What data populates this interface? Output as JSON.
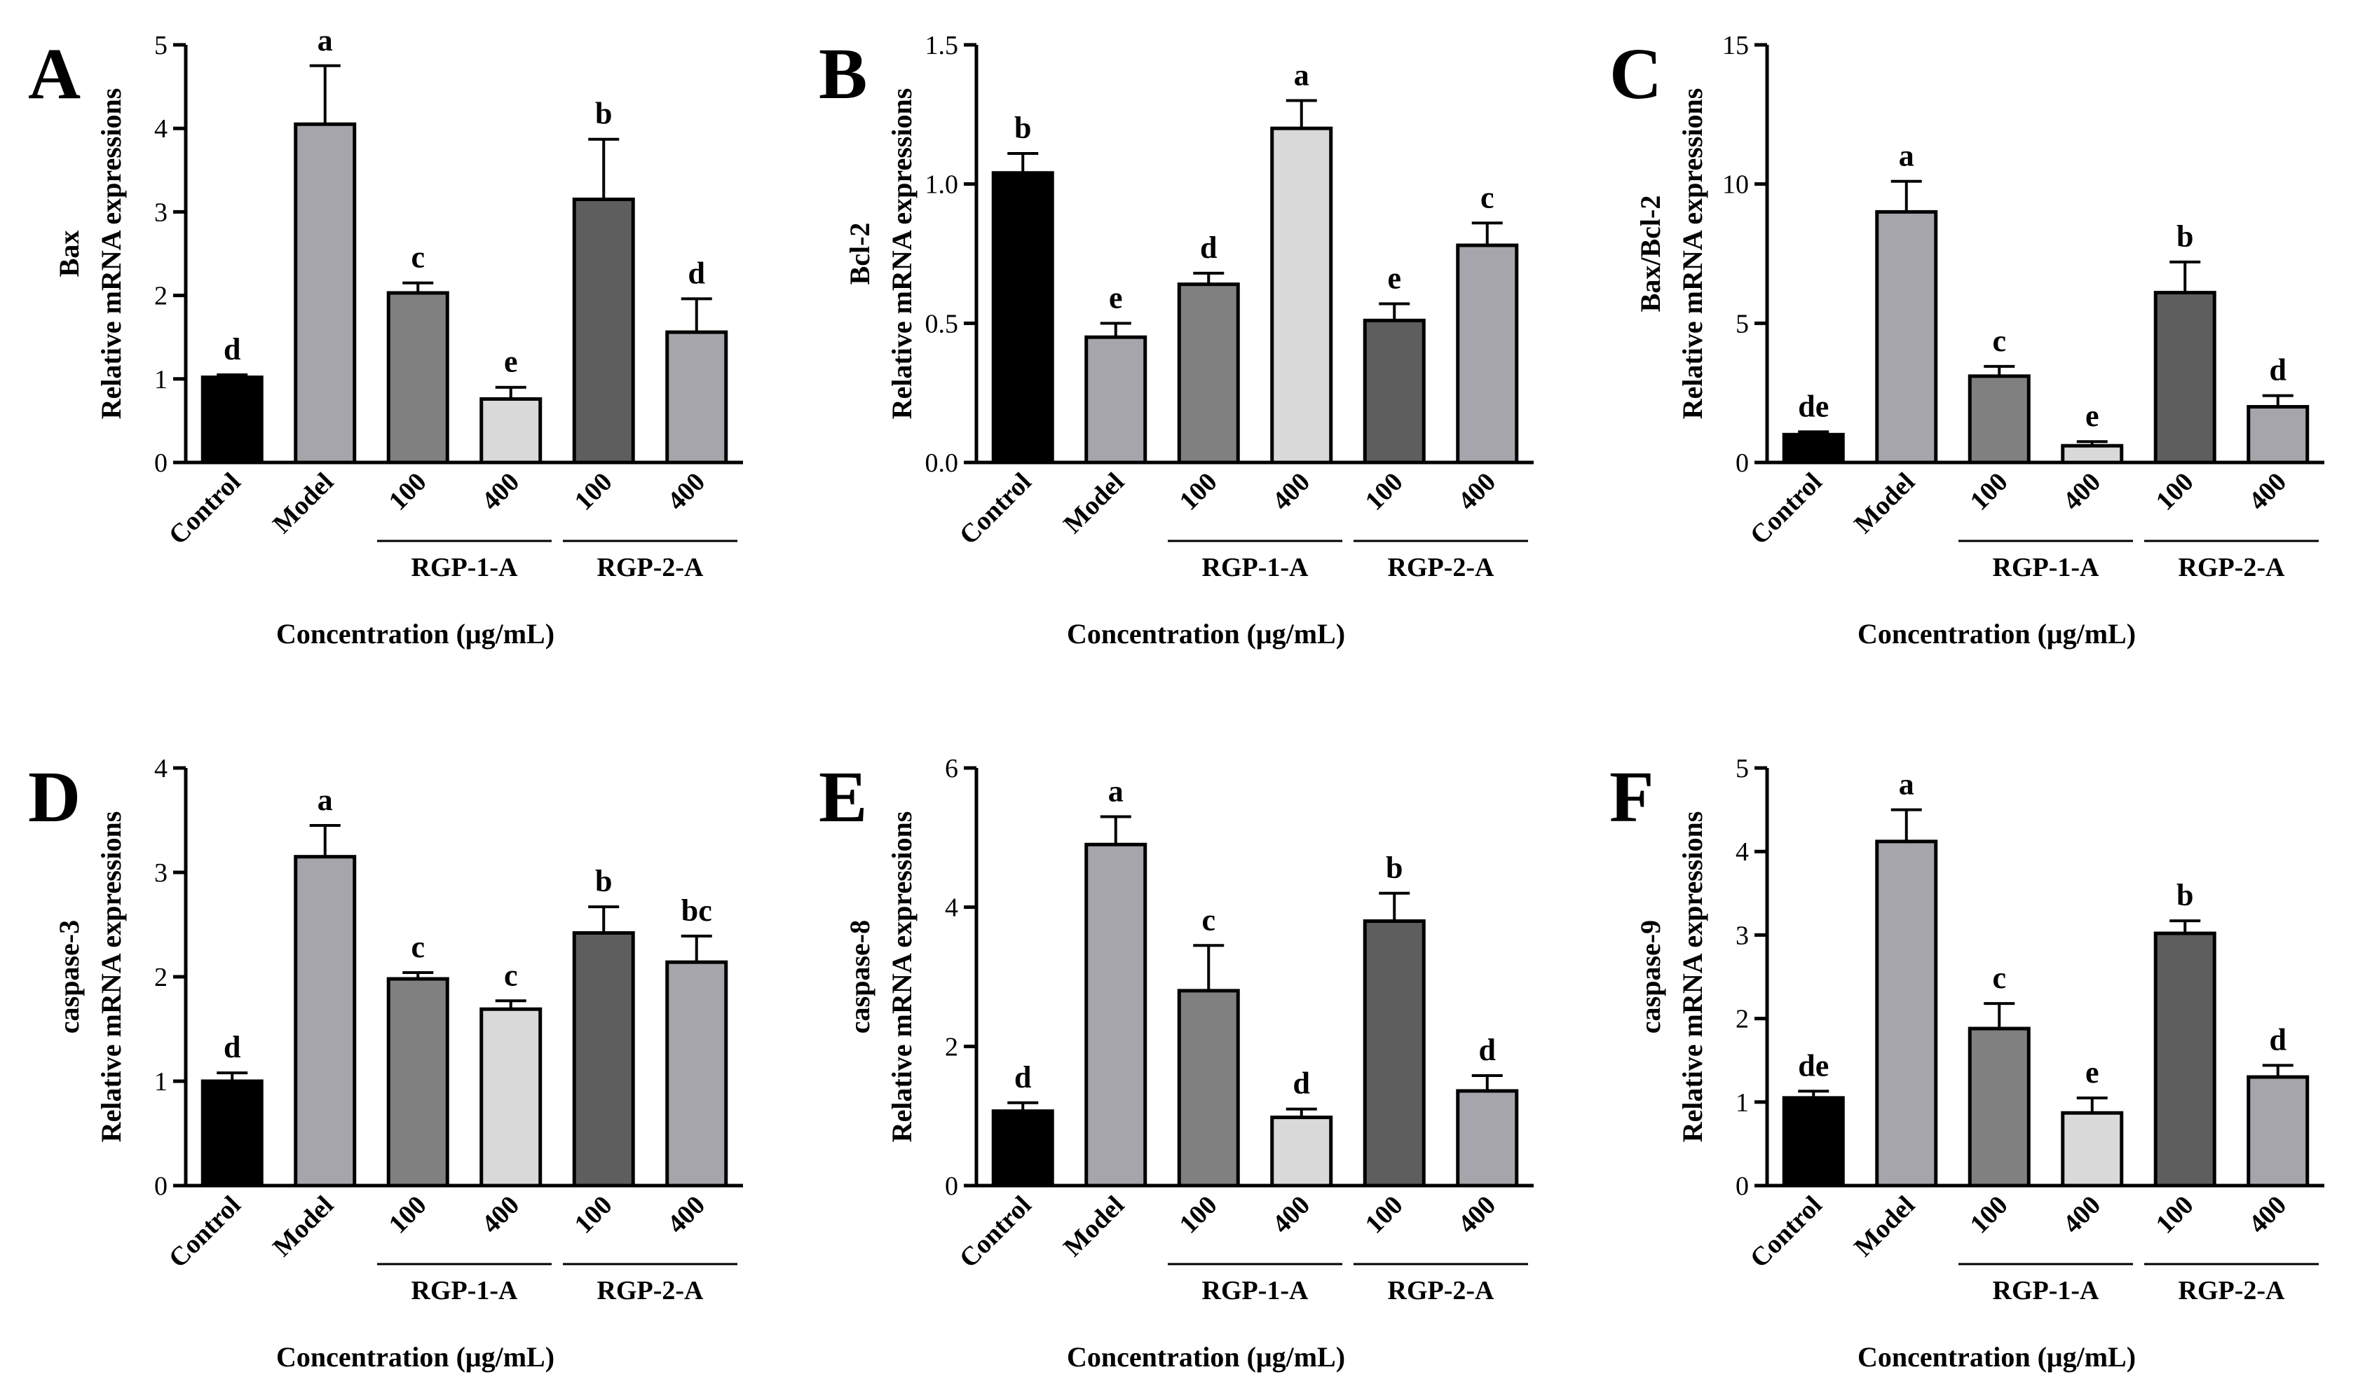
{
  "chart_data": [
    {
      "panel": "A",
      "type": "bar",
      "ylabel_gene": "Bax",
      "ylabel": "Relative mRNA expressions",
      "xlabel": "Concentration (μg/mL)",
      "categories": [
        "Control",
        "Model",
        "100",
        "400",
        "100",
        "400"
      ],
      "groups": [
        "RGP-1-A",
        "RGP-2-A"
      ],
      "ylim": [
        0,
        5
      ],
      "yticks": [
        "0",
        "1",
        "2",
        "3",
        "4",
        "5"
      ],
      "values": [
        1.02,
        4.05,
        2.03,
        0.76,
        3.15,
        1.56
      ],
      "errors": [
        0.03,
        0.7,
        0.12,
        0.14,
        0.72,
        0.4
      ],
      "letters": [
        "d",
        "a",
        "c",
        "e",
        "b",
        "d"
      ]
    },
    {
      "panel": "B",
      "type": "bar",
      "ylabel_gene": "Bcl-2",
      "ylabel": "Relative mRNA expressions",
      "xlabel": "Concentration (μg/mL)",
      "categories": [
        "Control",
        "Model",
        "100",
        "400",
        "100",
        "400"
      ],
      "groups": [
        "RGP-1-A",
        "RGP-2-A"
      ],
      "ylim": [
        0,
        1.5
      ],
      "yticks": [
        "0.0",
        "0.5",
        "1.0",
        "1.5"
      ],
      "values": [
        1.04,
        0.45,
        0.64,
        1.2,
        0.51,
        0.78
      ],
      "errors": [
        0.07,
        0.05,
        0.04,
        0.1,
        0.06,
        0.08
      ],
      "letters": [
        "b",
        "e",
        "d",
        "a",
        "e",
        "c"
      ]
    },
    {
      "panel": "C",
      "type": "bar",
      "ylabel_gene": "Bax/Bcl-2",
      "ylabel": "Relative mRNA expressions",
      "xlabel": "Concentration (μg/mL)",
      "categories": [
        "Control",
        "Model",
        "100",
        "400",
        "100",
        "400"
      ],
      "groups": [
        "RGP-1-A",
        "RGP-2-A"
      ],
      "ylim": [
        0,
        15
      ],
      "yticks": [
        "0",
        "5",
        "10",
        "15"
      ],
      "values": [
        1.0,
        9.0,
        3.1,
        0.6,
        6.1,
        2.0
      ],
      "errors": [
        0.1,
        1.1,
        0.35,
        0.15,
        1.1,
        0.4
      ],
      "letters": [
        "de",
        "a",
        "c",
        "e",
        "b",
        "d"
      ]
    },
    {
      "panel": "D",
      "type": "bar",
      "ylabel_gene": "caspase-3",
      "ylabel": "Relative mRNA expressions",
      "xlabel": "Concentration (μg/mL)",
      "categories": [
        "Control",
        "Model",
        "100",
        "400",
        "100",
        "400"
      ],
      "groups": [
        "RGP-1-A",
        "RGP-2-A"
      ],
      "ylim": [
        0,
        4
      ],
      "yticks": [
        "0",
        "1",
        "2",
        "3",
        "4"
      ],
      "values": [
        1.0,
        3.15,
        1.98,
        1.69,
        2.42,
        2.14
      ],
      "errors": [
        0.08,
        0.3,
        0.06,
        0.08,
        0.25,
        0.25
      ],
      "letters": [
        "d",
        "a",
        "c",
        "c",
        "b",
        "bc"
      ]
    },
    {
      "panel": "E",
      "type": "bar",
      "ylabel_gene": "caspase-8",
      "ylabel": "Relative mRNA expressions",
      "xlabel": "Concentration (μg/mL)",
      "categories": [
        "Control",
        "Model",
        "100",
        "400",
        "100",
        "400"
      ],
      "groups": [
        "RGP-1-A",
        "RGP-2-A"
      ],
      "ylim": [
        0,
        6
      ],
      "yticks": [
        "0",
        "2",
        "4",
        "6"
      ],
      "values": [
        1.07,
        4.9,
        2.8,
        0.98,
        3.8,
        1.36
      ],
      "errors": [
        0.12,
        0.4,
        0.65,
        0.12,
        0.4,
        0.22
      ],
      "letters": [
        "d",
        "a",
        "c",
        "d",
        "b",
        "d"
      ]
    },
    {
      "panel": "F",
      "type": "bar",
      "ylabel_gene": "caspase-9",
      "ylabel": "Relative mRNA expressions",
      "xlabel": "Concentration (μg/mL)",
      "categories": [
        "Control",
        "Model",
        "100",
        "400",
        "100",
        "400"
      ],
      "groups": [
        "RGP-1-A",
        "RGP-2-A"
      ],
      "ylim": [
        0,
        5
      ],
      "yticks": [
        "0",
        "1",
        "2",
        "3",
        "4",
        "5"
      ],
      "values": [
        1.05,
        4.12,
        1.88,
        0.87,
        3.02,
        1.3
      ],
      "errors": [
        0.08,
        0.38,
        0.3,
        0.18,
        0.15,
        0.14
      ],
      "letters": [
        "de",
        "a",
        "c",
        "e",
        "b",
        "d"
      ]
    }
  ],
  "style": {
    "bar_colors": [
      "#000000",
      "#a5a5ab",
      "#808080",
      "#d9d9d9",
      "#5e5e5e",
      "#a5a5ab"
    ],
    "line_color": "#000000"
  }
}
